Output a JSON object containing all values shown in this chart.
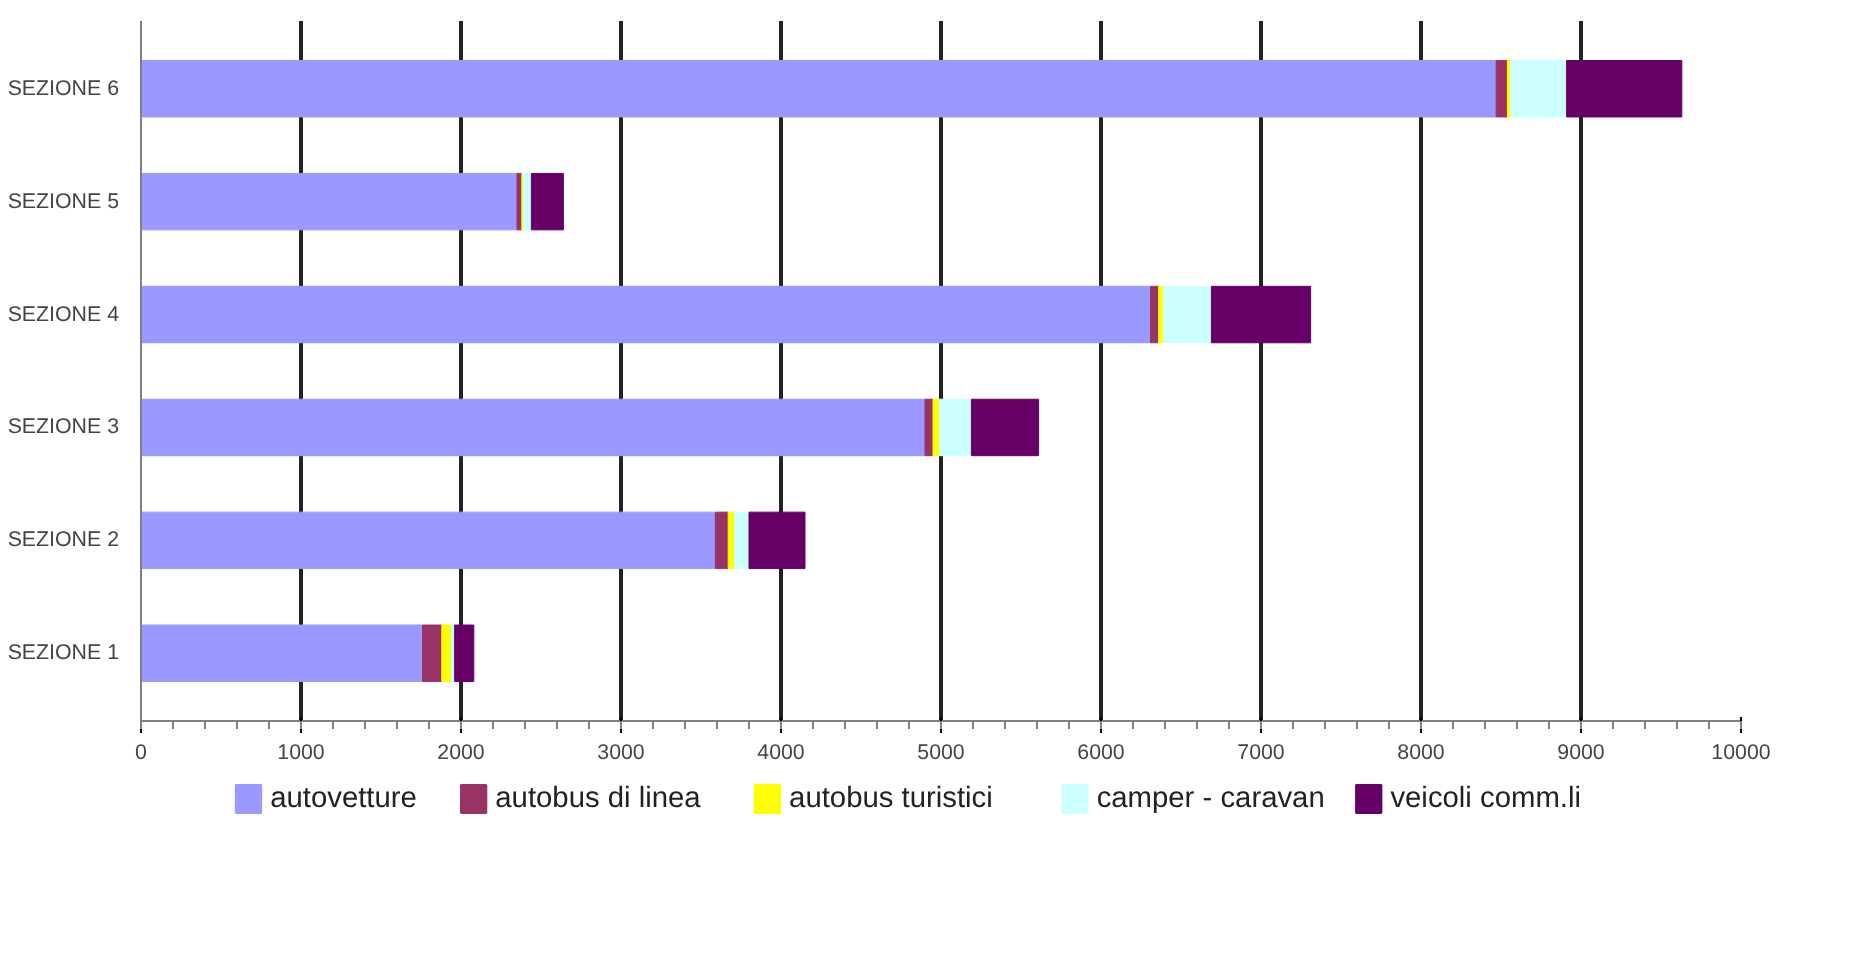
{
  "chart_data": {
    "type": "bar",
    "orientation": "horizontal",
    "stacked": true,
    "categories": [
      "SEZIONE 6",
      "SEZIONE 5",
      "SEZIONE 4",
      "SEZIONE 3",
      "SEZIONE 2",
      "SEZIONE 1"
    ],
    "series": [
      {
        "name": "autovetture",
        "color": "#9999ff",
        "values": [
          8470,
          2350,
          6310,
          4900,
          3590,
          1760
        ]
      },
      {
        "name": "autobus di linea",
        "color": "#993366",
        "values": [
          70,
          30,
          50,
          50,
          80,
          120
        ]
      },
      {
        "name": "autobus turistici",
        "color": "#ffff00",
        "values": [
          20,
          10,
          30,
          40,
          40,
          60
        ]
      },
      {
        "name": "camper - caravan",
        "color": "#ccffff",
        "values": [
          350,
          50,
          300,
          200,
          90,
          20
        ]
      },
      {
        "name": "veicoli comm.li",
        "color": "#660066",
        "values": [
          720,
          200,
          620,
          420,
          350,
          120
        ]
      }
    ],
    "xlim": [
      0,
      10000
    ],
    "xticks": [
      0,
      1000,
      2000,
      3000,
      4000,
      5000,
      6000,
      7000,
      8000,
      9000,
      10000
    ],
    "grid": "x",
    "legend": "bottom"
  }
}
